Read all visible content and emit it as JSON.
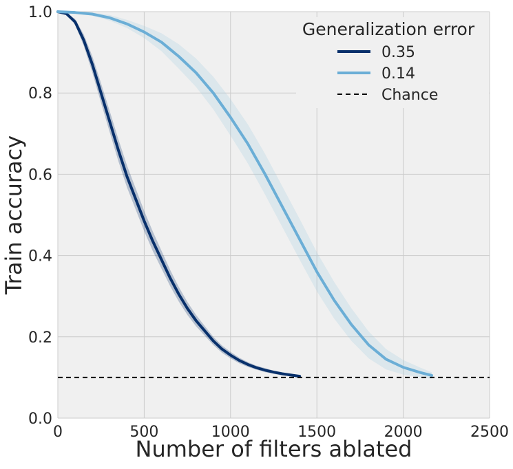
{
  "chart_data": {
    "type": "line",
    "xlabel": "Number of filters ablated",
    "ylabel": "Train accuracy",
    "xlim": [
      0,
      2500
    ],
    "ylim": [
      0.0,
      1.0
    ],
    "xticks": [
      "0",
      "500",
      "1000",
      "1500",
      "2000",
      "2500"
    ],
    "yticks": [
      "0.0",
      "0.2",
      "0.4",
      "0.6",
      "0.8",
      "1.0"
    ],
    "grid": true,
    "legend": {
      "title": "Generalization error",
      "placement": "top-right"
    },
    "series": [
      {
        "name": "0.35",
        "color": "#08306b",
        "band_color": "#08306b",
        "x": [
          0,
          50,
          100,
          150,
          200,
          250,
          300,
          350,
          400,
          450,
          500,
          550,
          600,
          650,
          700,
          750,
          800,
          850,
          900,
          950,
          1000,
          1050,
          1100,
          1150,
          1200,
          1250,
          1300,
          1350,
          1400
        ],
        "y": [
          1.0,
          0.995,
          0.975,
          0.93,
          0.87,
          0.8,
          0.73,
          0.66,
          0.595,
          0.54,
          0.485,
          0.435,
          0.39,
          0.345,
          0.305,
          0.27,
          0.24,
          0.215,
          0.19,
          0.17,
          0.155,
          0.142,
          0.132,
          0.124,
          0.118,
          0.113,
          0.109,
          0.106,
          0.103
        ],
        "band": [
          0.0,
          0.002,
          0.007,
          0.014,
          0.02,
          0.024,
          0.026,
          0.027,
          0.027,
          0.026,
          0.025,
          0.024,
          0.022,
          0.02,
          0.018,
          0.016,
          0.014,
          0.012,
          0.01,
          0.009,
          0.008,
          0.007,
          0.006,
          0.005,
          0.005,
          0.004,
          0.004,
          0.003,
          0.003
        ]
      },
      {
        "name": "0.14",
        "color": "#6baed6",
        "band_color": "#9ecae1",
        "x": [
          0,
          100,
          200,
          300,
          400,
          500,
          600,
          700,
          800,
          900,
          1000,
          1100,
          1200,
          1300,
          1400,
          1500,
          1600,
          1700,
          1800,
          1900,
          2000,
          2100,
          2165
        ],
        "y": [
          1.0,
          0.998,
          0.994,
          0.985,
          0.97,
          0.95,
          0.925,
          0.89,
          0.85,
          0.8,
          0.74,
          0.675,
          0.6,
          0.52,
          0.44,
          0.36,
          0.29,
          0.23,
          0.18,
          0.145,
          0.125,
          0.112,
          0.105
        ],
        "band": [
          0.0,
          0.002,
          0.004,
          0.007,
          0.01,
          0.015,
          0.022,
          0.03,
          0.035,
          0.04,
          0.045,
          0.048,
          0.05,
          0.05,
          0.05,
          0.048,
          0.045,
          0.04,
          0.033,
          0.025,
          0.018,
          0.012,
          0.008
        ]
      },
      {
        "name": "Chance",
        "color": "#000000",
        "style": "dashed",
        "x": [
          0,
          2500
        ],
        "y": [
          0.1,
          0.1
        ]
      }
    ]
  }
}
